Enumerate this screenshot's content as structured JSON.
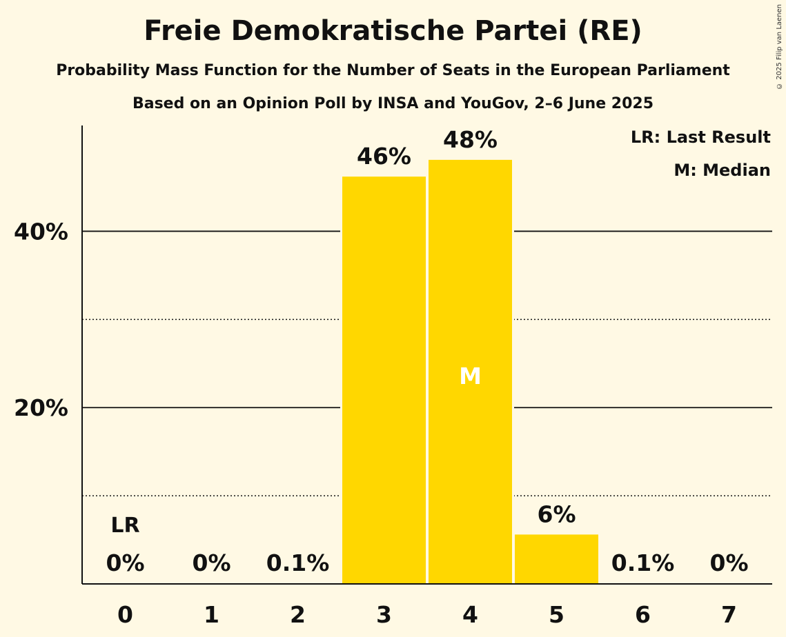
{
  "title": "Freie Demokratische Partei (RE)",
  "subtitle": "Probability Mass Function for the Number of Seats in the European Parliament",
  "subtitle2": "Based on an Opinion Poll by INSA and YouGov, 2–6 June 2025",
  "copyright": "© 2025 Filip van Laenen",
  "legend": {
    "last_result": "LR: Last Result",
    "median": "M: Median"
  },
  "colors": {
    "bar": "#FFD700",
    "background": "#FFF9E4",
    "median_text": "#FFFFFF",
    "axis": "#111111"
  },
  "chart_data": {
    "type": "bar",
    "categories": [
      "0",
      "1",
      "2",
      "3",
      "4",
      "5",
      "6",
      "7"
    ],
    "values": [
      0,
      0,
      0.1,
      46.2,
      48.1,
      5.6,
      0.1,
      0
    ],
    "value_labels": [
      "0%",
      "0%",
      "0.1%",
      "46%",
      "48%",
      "6%",
      "0.1%",
      "0%"
    ],
    "ylim": [
      0,
      52
    ],
    "yticks_major": [
      20,
      40
    ],
    "ytick_labels": [
      "20%",
      "40%"
    ],
    "yticks_minor": [
      10,
      30
    ],
    "last_result_index": 0,
    "last_result_label": "LR",
    "median_index": 4,
    "median_label": "M",
    "grid": true,
    "legend_position": "top-right"
  }
}
